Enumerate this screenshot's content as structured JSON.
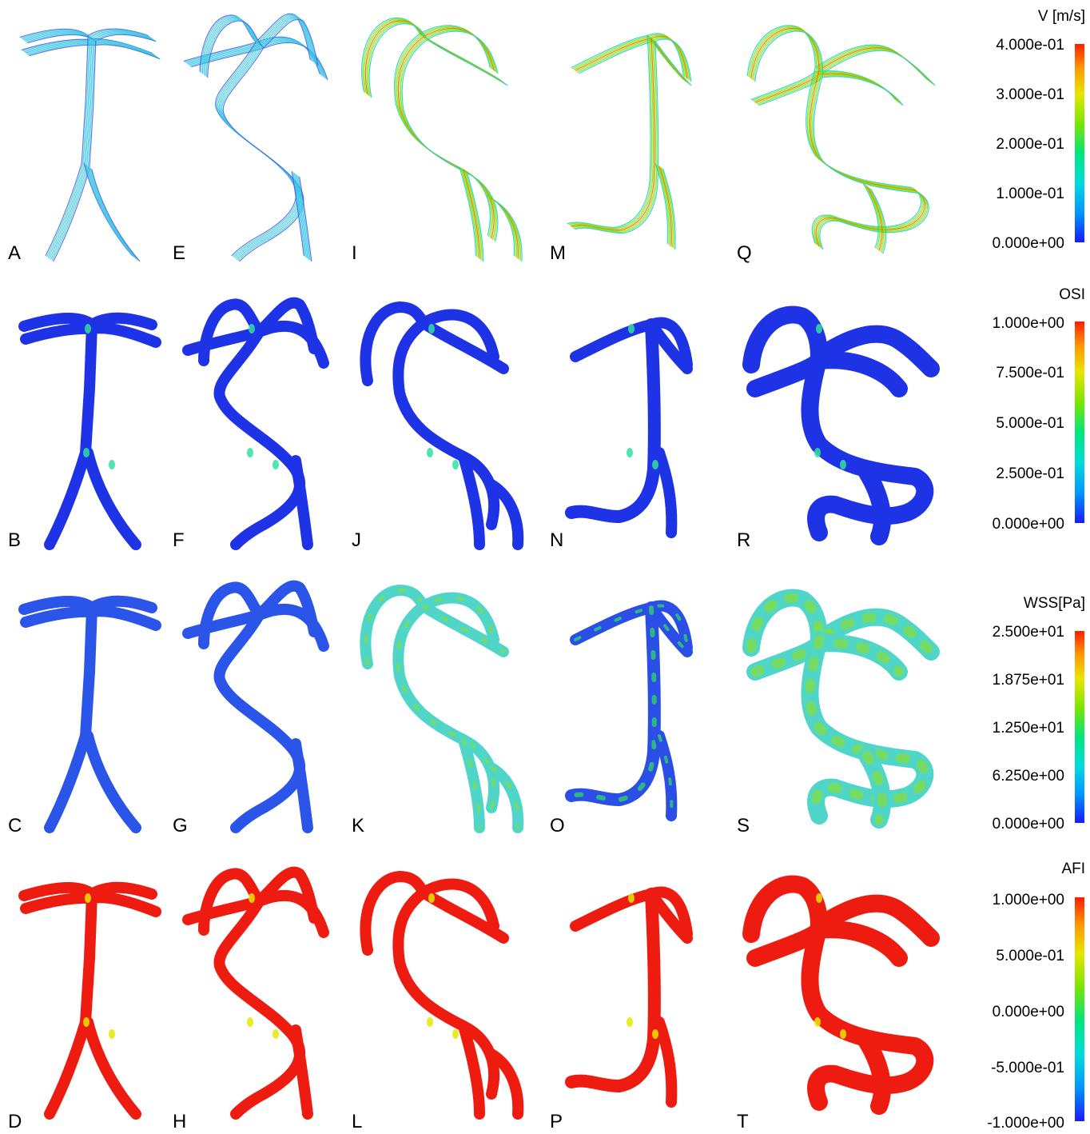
{
  "panel_letters": {
    "A": "A",
    "B": "B",
    "C": "C",
    "D": "D",
    "E": "E",
    "F": "F",
    "G": "G",
    "H": "H",
    "I": "I",
    "J": "J",
    "K": "K",
    "L": "L",
    "M": "M",
    "N": "N",
    "O": "O",
    "P": "P",
    "Q": "Q",
    "R": "R",
    "S": "S",
    "T": "T"
  },
  "rows": [
    {
      "id": "velocity",
      "render": "streamlines",
      "panels": [
        "A",
        "E",
        "I",
        "M",
        "Q"
      ]
    },
    {
      "id": "osi",
      "render": "surface",
      "panels": [
        "B",
        "F",
        "J",
        "N",
        "R"
      ]
    },
    {
      "id": "wss",
      "render": "surface",
      "panels": [
        "C",
        "G",
        "K",
        "O",
        "S"
      ]
    },
    {
      "id": "afi",
      "render": "surface",
      "panels": [
        "D",
        "H",
        "L",
        "P",
        "T"
      ]
    }
  ],
  "colorbars": [
    {
      "title": "V [m/s]",
      "ticks": [
        "4.000e-01",
        "3.000e-01",
        "2.000e-01",
        "1.000e-01",
        "0.000e+00"
      ]
    },
    {
      "title": "OSI",
      "ticks": [
        "1.000e+00",
        "7.500e-01",
        "5.000e-01",
        "2.500e-01",
        "0.000e+00"
      ]
    },
    {
      "title": "WSS[Pa]",
      "ticks": [
        "2.500e+01",
        "1.875e+01",
        "1.250e+01",
        "6.250e+00",
        "0.000e+00"
      ]
    },
    {
      "title": "AFI",
      "ticks": [
        "1.000e+00",
        "5.000e-01",
        "0.000e+00",
        "-5.000e-01",
        "-1.000e+00"
      ]
    }
  ],
  "colormap": [
    "#1a1aff",
    "#0096ff",
    "#00dcdc",
    "#00e67a",
    "#7ae600",
    "#e6e600",
    "#ff9600",
    "#ff1e00"
  ],
  "colors": {
    "low": "#1f33e6",
    "mid": "#2fe0a0",
    "high": "#ee1c10",
    "stream_low": "#3f63e8",
    "stream_mid": "#38c8e0"
  }
}
